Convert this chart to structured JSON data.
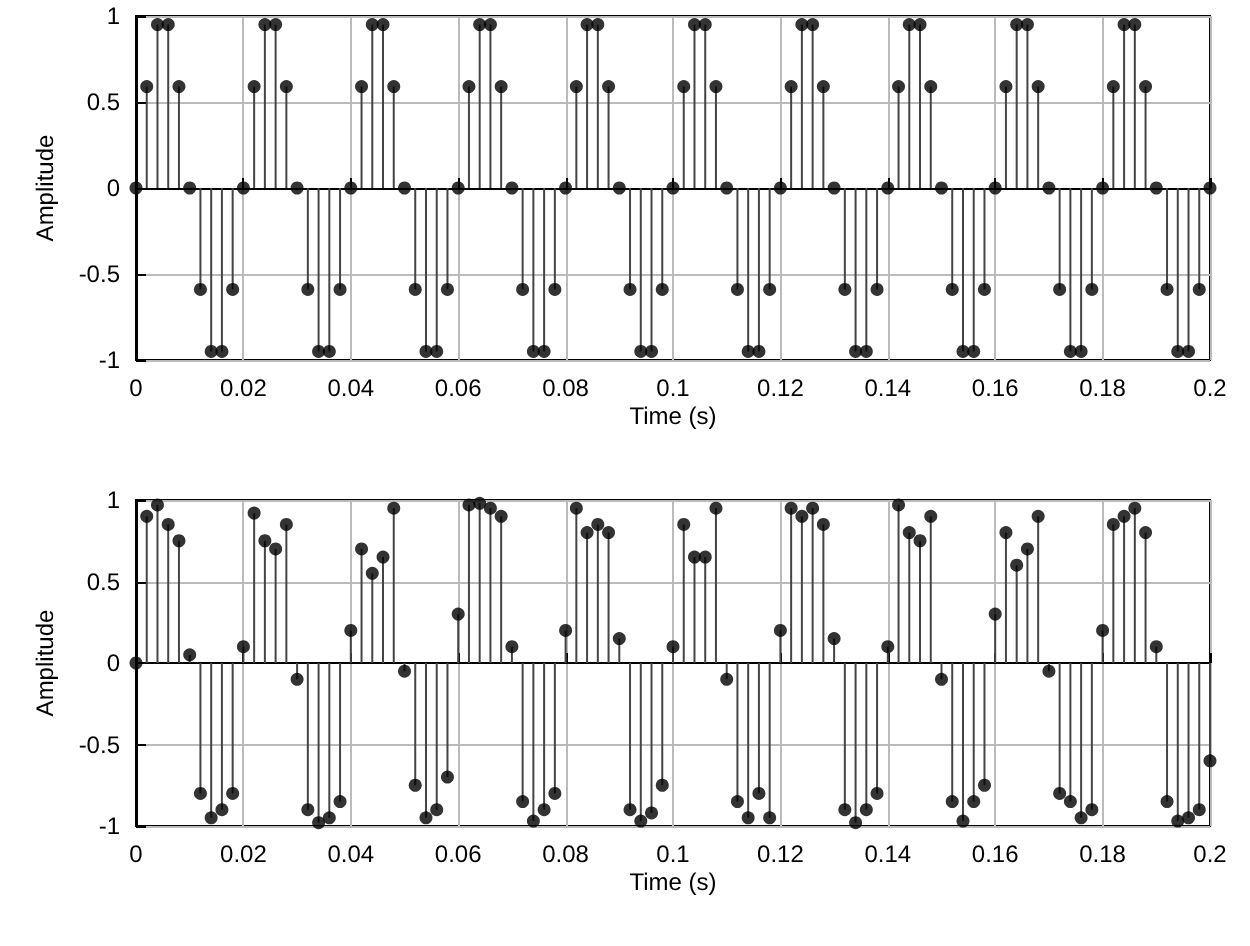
{
  "chart_data": [
    {
      "type": "lollipop",
      "xlabel": "Time (s)",
      "ylabel": "Amplitude",
      "marker": "circle",
      "grid": true,
      "xlim": [
        0,
        0.2
      ],
      "ylim": [
        -1,
        1
      ],
      "xticks": [
        0,
        0.02,
        0.04,
        0.06,
        0.08,
        0.1,
        0.12,
        0.14,
        0.16,
        0.18,
        0.2
      ],
      "yticks": [
        -1,
        -0.5,
        0,
        0.5,
        1
      ],
      "x": [
        0,
        0.002,
        0.004,
        0.006,
        0.008,
        0.01,
        0.012,
        0.014,
        0.016,
        0.018,
        0.02,
        0.022,
        0.024,
        0.026,
        0.028,
        0.03,
        0.032,
        0.034,
        0.036,
        0.038,
        0.04,
        0.042,
        0.044,
        0.046,
        0.048,
        0.05,
        0.052,
        0.054,
        0.056,
        0.058,
        0.06,
        0.062,
        0.064,
        0.066,
        0.068,
        0.07,
        0.072,
        0.074,
        0.076,
        0.078,
        0.08,
        0.082,
        0.084,
        0.086,
        0.088,
        0.09,
        0.092,
        0.094,
        0.096,
        0.098,
        0.1,
        0.102,
        0.104,
        0.106,
        0.108,
        0.11,
        0.112,
        0.114,
        0.116,
        0.118,
        0.12,
        0.122,
        0.124,
        0.126,
        0.128,
        0.13,
        0.132,
        0.134,
        0.136,
        0.138,
        0.14,
        0.142,
        0.144,
        0.146,
        0.148,
        0.15,
        0.152,
        0.154,
        0.156,
        0.158,
        0.16,
        0.162,
        0.164,
        0.166,
        0.168,
        0.17,
        0.172,
        0.174,
        0.176,
        0.178,
        0.18,
        0.182,
        0.184,
        0.186,
        0.188,
        0.19,
        0.192,
        0.194,
        0.196,
        0.198,
        0.2
      ],
      "series": [
        {
          "color": "#000000",
          "values": [
            0,
            0.59,
            0.95,
            0.95,
            0.59,
            0,
            -0.59,
            -0.95,
            -0.95,
            -0.59,
            0,
            0.59,
            0.95,
            0.95,
            0.59,
            0,
            -0.59,
            -0.95,
            -0.95,
            -0.59,
            0,
            0.59,
            0.95,
            0.95,
            0.59,
            0,
            -0.59,
            -0.95,
            -0.95,
            -0.59,
            0,
            0.59,
            0.95,
            0.95,
            0.59,
            0,
            -0.59,
            -0.95,
            -0.95,
            -0.59,
            0,
            0.59,
            0.95,
            0.95,
            0.59,
            0,
            -0.59,
            -0.95,
            -0.95,
            -0.59,
            0,
            0.59,
            0.95,
            0.95,
            0.59,
            0,
            -0.59,
            -0.95,
            -0.95,
            -0.59,
            0,
            0.59,
            0.95,
            0.95,
            0.59,
            0,
            -0.59,
            -0.95,
            -0.95,
            -0.59,
            0,
            0.59,
            0.95,
            0.95,
            0.59,
            0,
            -0.59,
            -0.95,
            -0.95,
            -0.59,
            0,
            0.59,
            0.95,
            0.95,
            0.59,
            0,
            -0.59,
            -0.95,
            -0.95,
            -0.59,
            0,
            0.59,
            0.95,
            0.95,
            0.59,
            0,
            -0.59,
            -0.95,
            -0.95,
            -0.59,
            0
          ]
        }
      ]
    },
    {
      "type": "lollipop",
      "xlabel": "Time (s)",
      "ylabel": "Amplitude",
      "marker": "circle",
      "grid": true,
      "xlim": [
        0,
        0.2
      ],
      "ylim": [
        -1,
        1
      ],
      "xticks": [
        0,
        0.02,
        0.04,
        0.06,
        0.08,
        0.1,
        0.12,
        0.14,
        0.16,
        0.18,
        0.2
      ],
      "yticks": [
        -1,
        -0.5,
        0,
        0.5,
        1
      ],
      "x": [
        0,
        0.002,
        0.004,
        0.006,
        0.008,
        0.01,
        0.012,
        0.014,
        0.016,
        0.018,
        0.02,
        0.022,
        0.024,
        0.026,
        0.028,
        0.03,
        0.032,
        0.034,
        0.036,
        0.038,
        0.04,
        0.042,
        0.044,
        0.046,
        0.048,
        0.05,
        0.052,
        0.054,
        0.056,
        0.058,
        0.06,
        0.062,
        0.064,
        0.066,
        0.068,
        0.07,
        0.072,
        0.074,
        0.076,
        0.078,
        0.08,
        0.082,
        0.084,
        0.086,
        0.088,
        0.09,
        0.092,
        0.094,
        0.096,
        0.098,
        0.1,
        0.102,
        0.104,
        0.106,
        0.108,
        0.11,
        0.112,
        0.114,
        0.116,
        0.118,
        0.12,
        0.122,
        0.124,
        0.126,
        0.128,
        0.13,
        0.132,
        0.134,
        0.136,
        0.138,
        0.14,
        0.142,
        0.144,
        0.146,
        0.148,
        0.15,
        0.152,
        0.154,
        0.156,
        0.158,
        0.16,
        0.162,
        0.164,
        0.166,
        0.168,
        0.17,
        0.172,
        0.174,
        0.176,
        0.178,
        0.18,
        0.182,
        0.184,
        0.186,
        0.188,
        0.19,
        0.192,
        0.194,
        0.196,
        0.198,
        0.2
      ],
      "series": [
        {
          "color": "#000000",
          "values": [
            0,
            0.9,
            0.97,
            0.85,
            0.75,
            0.05,
            -0.8,
            -0.95,
            -0.9,
            -0.8,
            0.1,
            0.92,
            0.75,
            0.7,
            0.85,
            -0.1,
            -0.9,
            -0.98,
            -0.95,
            -0.85,
            0.2,
            0.7,
            0.55,
            0.65,
            0.95,
            -0.05,
            -0.75,
            -0.95,
            -0.9,
            -0.7,
            0.3,
            0.97,
            0.98,
            0.95,
            0.9,
            0.1,
            -0.85,
            -0.97,
            -0.9,
            -0.8,
            0.2,
            0.95,
            0.8,
            0.85,
            0.8,
            0.15,
            -0.9,
            -0.97,
            -0.92,
            -0.75,
            0.1,
            0.85,
            0.65,
            0.65,
            0.95,
            -0.1,
            -0.85,
            -0.95,
            -0.8,
            -0.95,
            0.2,
            0.95,
            0.9,
            0.95,
            0.85,
            0.15,
            -0.9,
            -0.98,
            -0.9,
            -0.8,
            0.1,
            0.97,
            0.8,
            0.75,
            0.9,
            -0.1,
            -0.85,
            -0.97,
            -0.85,
            -0.75,
            0.3,
            0.8,
            0.6,
            0.7,
            0.9,
            -0.05,
            -0.8,
            -0.85,
            -0.95,
            -0.9,
            0.2,
            0.85,
            0.9,
            0.95,
            0.8,
            0.1,
            -0.85,
            -0.97,
            -0.95,
            -0.9,
            -0.6
          ]
        }
      ]
    }
  ]
}
